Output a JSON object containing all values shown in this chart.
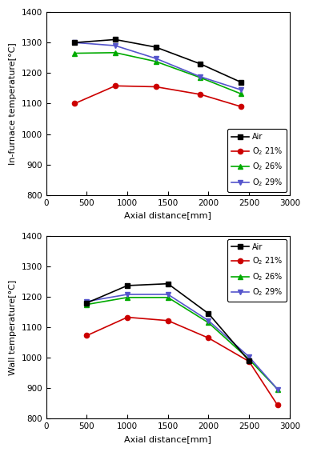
{
  "top": {
    "x_air": [
      350,
      850,
      1350,
      1900,
      2400
    ],
    "y_air": [
      1300,
      1310,
      1285,
      1230,
      1170
    ],
    "x_o2_21": [
      350,
      850,
      1350,
      1900,
      2400
    ],
    "y_o2_21": [
      1100,
      1158,
      1155,
      1130,
      1090
    ],
    "x_o2_26": [
      350,
      850,
      1350,
      1900,
      2400
    ],
    "y_o2_26": [
      1265,
      1267,
      1238,
      1185,
      1132
    ],
    "x_o2_29": [
      350,
      850,
      1350,
      1900,
      2400
    ],
    "y_o2_29": [
      1300,
      1290,
      1248,
      1188,
      1145
    ],
    "ylabel": "In-furnace temperature[°C]",
    "xlabel": "Axial distance[mm]",
    "ylim": [
      800,
      1400
    ],
    "xlim": [
      0,
      3000
    ],
    "yticks": [
      800,
      900,
      1000,
      1100,
      1200,
      1300,
      1400
    ],
    "xticks": [
      0,
      500,
      1000,
      1500,
      2000,
      2500,
      3000
    ],
    "legend_loc": "lower right",
    "legend_bbox": null
  },
  "bottom": {
    "x_air": [
      500,
      1000,
      1500,
      2000,
      2500
    ],
    "y_air": [
      1180,
      1237,
      1243,
      1145,
      990
    ],
    "x_o2_21": [
      500,
      1000,
      1500,
      2000,
      2500,
      2850
    ],
    "y_o2_21": [
      1073,
      1133,
      1122,
      1065,
      988,
      845
    ],
    "x_o2_26": [
      500,
      1000,
      1500,
      2000,
      2500,
      2850
    ],
    "y_o2_26": [
      1175,
      1198,
      1198,
      1115,
      995,
      897
    ],
    "x_o2_29": [
      500,
      1000,
      1500,
      2000,
      2500,
      2850
    ],
    "y_o2_29": [
      1185,
      1208,
      1208,
      1122,
      1003,
      897
    ],
    "ylabel": "Wall temperature[°C]",
    "xlabel": "Axial distance[mm]",
    "ylim": [
      800,
      1400
    ],
    "xlim": [
      0,
      3000
    ],
    "yticks": [
      800,
      900,
      1000,
      1100,
      1200,
      1300,
      1400
    ],
    "xticks": [
      0,
      500,
      1000,
      1500,
      2000,
      2500,
      3000
    ],
    "legend_loc": "upper right",
    "legend_bbox": null
  },
  "color_air": "#000000",
  "color_o2_21": "#cc0000",
  "color_o2_26": "#00aa00",
  "color_o2_29": "#5555cc",
  "legend_labels": [
    "Air",
    "O$_2$ 21%",
    "O$_2$ 26%",
    "O$_2$ 29%"
  ],
  "figsize": [
    3.86,
    5.65
  ],
  "dpi": 100,
  "tick_labelsize": 7.5,
  "axis_labelsize": 8,
  "legend_fontsize": 7,
  "linewidth": 1.2,
  "markersize": 4.5
}
